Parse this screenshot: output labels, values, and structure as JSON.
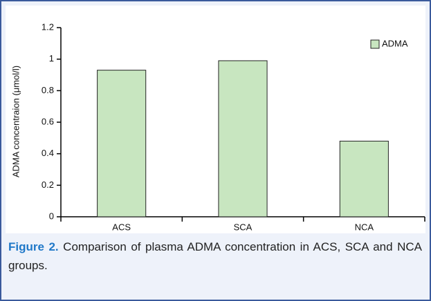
{
  "chart_data": {
    "type": "bar",
    "ylabel": "ADMA concentraion (μmol/l)",
    "categories": [
      "ACS",
      "SCA",
      "NCA"
    ],
    "series": [
      {
        "name": "ADMA",
        "color": "#c8e6c0",
        "values": [
          0.93,
          0.99,
          0.48
        ]
      }
    ],
    "ylim": [
      0,
      1.2
    ],
    "yticks": [
      0,
      0.2,
      0.4,
      0.6,
      0.8,
      1,
      1.2
    ],
    "grid": false,
    "legend": "top-right"
  },
  "figure_caption": {
    "label": "Figure 2.",
    "text": "Comparison of plasma ADMA concentration in ACS, SCA and NCA groups."
  }
}
